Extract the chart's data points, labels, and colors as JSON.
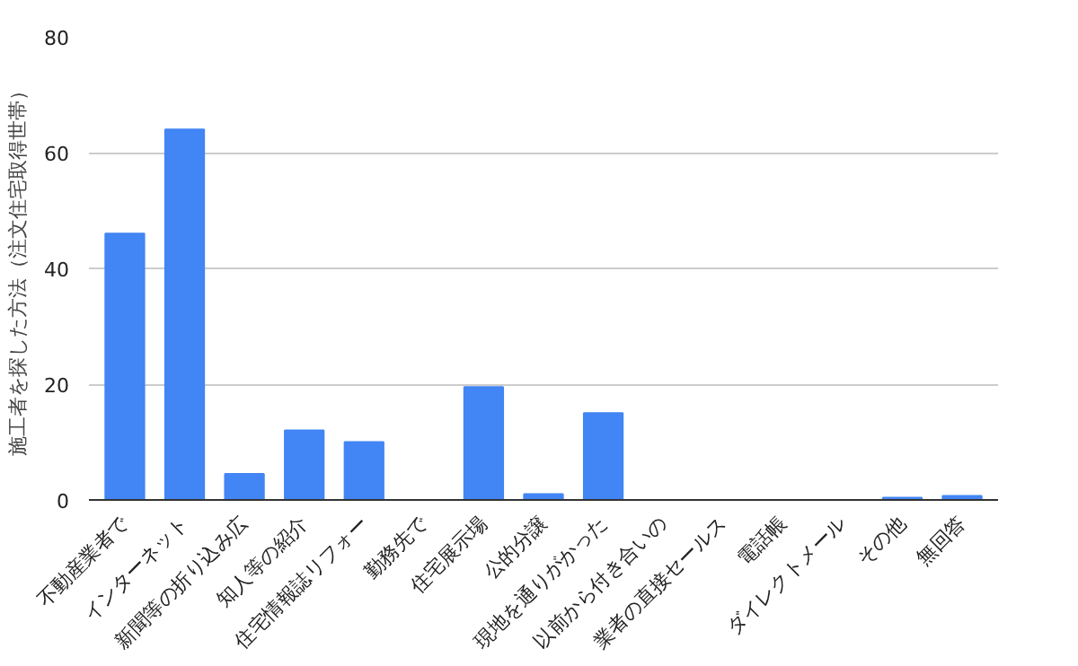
{
  "chart_data": {
    "type": "bar",
    "ylabel": "施工者を探した方法（注文住宅取得世帯）",
    "categories": [
      "不動産業者で",
      "インターネット",
      "新聞等の折り込み広",
      "知人等の紹介",
      "住宅情報誌リフォー",
      "勤務先で",
      "住宅展示場",
      "公的分譲",
      "現地を通りがかった",
      "以前から付き合いの",
      "業者の直接セールス",
      "電話帳",
      "ダイレクトメール",
      "その他",
      "無回答"
    ],
    "values": [
      46,
      64,
      4.5,
      12,
      10,
      0,
      19.5,
      1,
      15,
      0,
      0,
      0,
      0,
      0.4,
      0.7
    ],
    "color": "#4285f4",
    "ylim": [
      0,
      80
    ],
    "yticks": [
      0,
      20,
      40,
      60,
      80
    ],
    "grid": "y"
  }
}
